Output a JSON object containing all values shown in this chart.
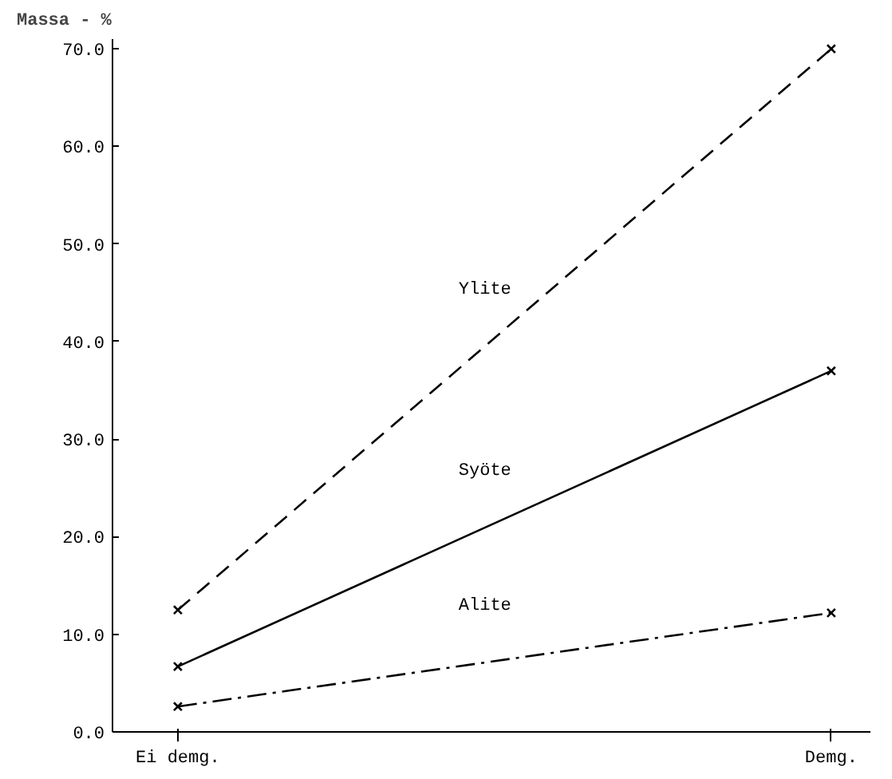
{
  "chart_data": {
    "type": "line",
    "ylabel": "Massa - %",
    "categories": [
      "Ei demg.",
      "Demg."
    ],
    "series": [
      {
        "name": "Ylite",
        "color": "#000000",
        "values": [
          12.5,
          70.0
        ],
        "line_style": "dashed"
      },
      {
        "name": "Syöte",
        "color": "#000000",
        "values": [
          6.7,
          37.0
        ],
        "line_style": "solid"
      },
      {
        "name": "Alite",
        "color": "#000000",
        "values": [
          2.6,
          12.2
        ],
        "line_style": "dashdot"
      }
    ],
    "ylim": [
      0,
      71
    ],
    "yticks": [
      {
        "value": 0,
        "label": "0.0"
      },
      {
        "value": 10,
        "label": "10.0"
      },
      {
        "value": 20,
        "label": "20.0"
      },
      {
        "value": 30,
        "label": "30.0"
      },
      {
        "value": 40,
        "label": "40.0"
      },
      {
        "value": 50,
        "label": "50.0"
      },
      {
        "value": 60,
        "label": "60.0"
      },
      {
        "value": 70,
        "label": "70.0"
      }
    ],
    "grid": false,
    "legend": false,
    "marker": "cross"
  }
}
